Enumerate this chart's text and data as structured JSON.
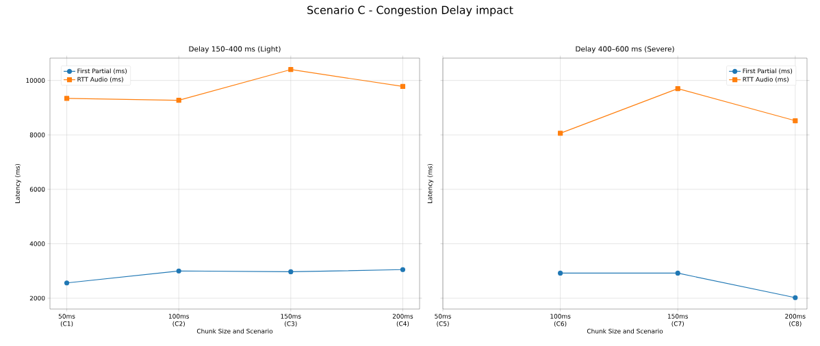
{
  "chart_data": [
    {
      "type": "line",
      "title": "Delay 150–400 ms (Light)",
      "xlabel": "Chunk Size and Scenario",
      "ylabel": "Latency (ms)",
      "annotations": [
        "Scenario C - Congestion Delay impact"
      ],
      "categories": [
        "50ms (C1)",
        "100ms (C2)",
        "150ms (C3)",
        "200ms (C4)"
      ],
      "series": [
        {
          "name": "First Partial (ms)",
          "color": "#1f77b4",
          "marker": "circle",
          "values": [
            2560,
            3000,
            2970,
            3050
          ]
        },
        {
          "name": "RTT Audio (ms)",
          "color": "#ff7f0e",
          "marker": "square",
          "values": [
            9340,
            9270,
            10400,
            9780
          ]
        }
      ],
      "ylim": [
        1600,
        10820
      ],
      "yticks": [
        2000,
        4000,
        6000,
        8000,
        10000
      ],
      "grid": true,
      "legend": "top left"
    },
    {
      "type": "line",
      "title": "Delay 400–600 ms (Severe)",
      "xlabel": "Chunk Size and Scenario",
      "ylabel": "Latency (ms)",
      "categories": [
        "50ms (C5)",
        "100ms (C6)",
        "150ms (C7)",
        "200ms (C8)"
      ],
      "series": [
        {
          "name": "First Partial (ms)",
          "color": "#1f77b4",
          "marker": "circle",
          "values": [
            null,
            2920,
            2920,
            2020
          ]
        },
        {
          "name": "RTT Audio (ms)",
          "color": "#ff7f0e",
          "marker": "square",
          "values": [
            null,
            8060,
            9700,
            8520
          ]
        }
      ],
      "ylim": [
        1600,
        10820
      ],
      "yticks": [
        2000,
        4000,
        6000,
        8000,
        10000
      ],
      "grid": true,
      "legend": "top right",
      "tick_labels": "x"
    }
  ]
}
